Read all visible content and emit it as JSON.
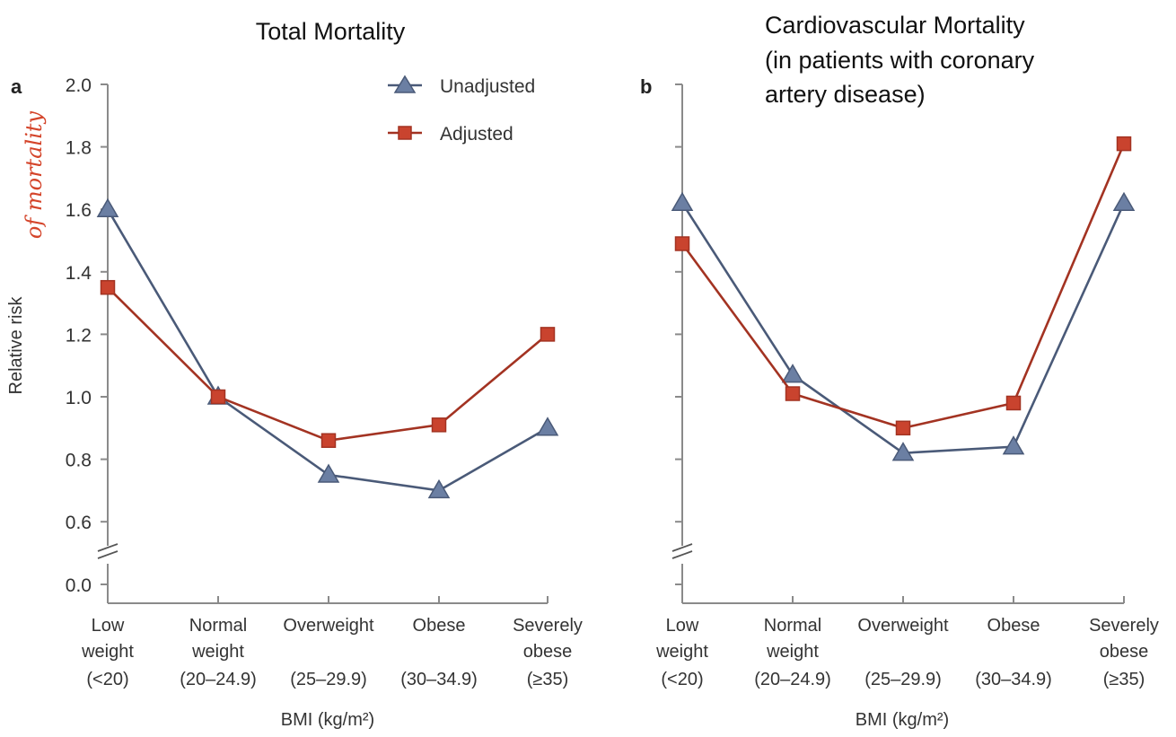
{
  "annotation_handwritten": "of mortality",
  "colors": {
    "unadjusted": "#6b7fa3",
    "unadjusted_stroke": "#4a5a78",
    "adjusted": "#c9432e",
    "adjusted_stroke": "#a33322",
    "axis": "#8a8a8a"
  },
  "chart_data": [
    {
      "type": "line",
      "panel": "a",
      "title": "Total Mortality",
      "xlabel": "BMI (kg/m²)",
      "ylabel": "Relative risk",
      "ylim": [
        0.0,
        2.0
      ],
      "axis_break": [
        0.0,
        0.6
      ],
      "yticks": [
        "2.0",
        "1.8",
        "1.6",
        "1.4",
        "1.2",
        "1.0",
        "0.8",
        "0.6",
        "0.0"
      ],
      "categories": [
        [
          "Low",
          "weight",
          "(<20)"
        ],
        [
          "Normal",
          "weight",
          "(20–24.9)"
        ],
        [
          "Overweight",
          "",
          "(25–29.9)"
        ],
        [
          "Obese",
          "",
          "(30–34.9)"
        ],
        [
          "Severely",
          "obese",
          "(≥35)"
        ]
      ],
      "legend": {
        "placement": "top-right",
        "entries": [
          "Unadjusted",
          "Adjusted"
        ]
      },
      "series": [
        {
          "name": "Unadjusted",
          "marker": "triangle",
          "values": [
            1.6,
            1.0,
            0.75,
            0.7,
            0.9
          ]
        },
        {
          "name": "Adjusted",
          "marker": "square",
          "values": [
            1.35,
            1.0,
            0.86,
            0.91,
            1.2
          ]
        }
      ]
    },
    {
      "type": "line",
      "panel": "b",
      "title": [
        "Cardiovascular Mortality",
        "(in patients with coronary",
        "artery disease)"
      ],
      "xlabel": "BMI (kg/m²)",
      "ylabel": "",
      "ylim": [
        0.0,
        2.0
      ],
      "axis_break": [
        0.0,
        0.6
      ],
      "categories": [
        [
          "Low",
          "weight",
          "(<20)"
        ],
        [
          "Normal",
          "weight",
          "(20–24.9)"
        ],
        [
          "Overweight",
          "",
          "(25–29.9)"
        ],
        [
          "Obese",
          "",
          "(30–34.9)"
        ],
        [
          "Severely",
          "obese",
          "(≥35)"
        ]
      ],
      "series": [
        {
          "name": "Unadjusted",
          "marker": "triangle",
          "values": [
            1.62,
            1.07,
            0.82,
            0.84,
            1.62
          ]
        },
        {
          "name": "Adjusted",
          "marker": "square",
          "values": [
            1.49,
            1.01,
            0.9,
            0.98,
            1.81
          ]
        }
      ]
    }
  ]
}
